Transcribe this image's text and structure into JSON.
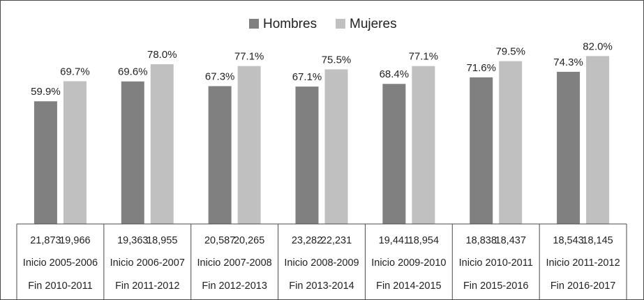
{
  "colors": {
    "hombres": "#808080",
    "mujeres": "#c0c0c0",
    "border": "#4a4a4a",
    "text": "#222222"
  },
  "chart_data": {
    "type": "bar",
    "title": "",
    "xlabel": "",
    "ylabel": "",
    "ylim": [
      0,
      100
    ],
    "grid": false,
    "legend_position": "top-center",
    "categories": [
      "Inicio 2005-2006 Fin 2010-2011",
      "Inicio 2006-2007 Fin 2011-2012",
      "Inicio 2007-2008 Fin 2012-2013",
      "Inicio 2008-2009 Fin 2013-2014",
      "Inicio 2009-2010 Fin 2014-2015",
      "Inicio 2010-2011 Fin 2015-2016",
      "Inicio 2011-2012 Fin 2016-2017"
    ],
    "series": [
      {
        "name": "Hombres",
        "values": [
          59.9,
          69.6,
          67.3,
          67.1,
          68.4,
          71.6,
          74.3
        ],
        "labels": [
          "59.9%",
          "69.6%",
          "67.3%",
          "67.1%",
          "68.4%",
          "71.6%",
          "74.3%"
        ],
        "counts": [
          "21,873",
          "19,363",
          "20,587",
          "23,282",
          "19,441",
          "18,838",
          "18,543"
        ]
      },
      {
        "name": "Mujeres",
        "values": [
          69.7,
          78.0,
          77.1,
          75.5,
          77.1,
          79.5,
          82.0
        ],
        "labels": [
          "69.7%",
          "78.0%",
          "77.1%",
          "75.5%",
          "77.1%",
          "79.5%",
          "82.0%"
        ],
        "counts": [
          "19,966",
          "18,955",
          "20,265",
          "22,231",
          "18,954",
          "18,437",
          "18,145"
        ]
      }
    ],
    "table": {
      "inicio": [
        "Inicio 2005-2006",
        "Inicio 2006-2007",
        "Inicio 2007-2008",
        "Inicio 2008-2009",
        "Inicio 2009-2010",
        "Inicio 2010-2011",
        "Inicio 2011-2012"
      ],
      "fin": [
        "Fin 2010-2011",
        "Fin 2011-2012",
        "Fin 2012-2013",
        "Fin 2013-2014",
        "Fin 2014-2015",
        "Fin 2015-2016",
        "Fin 2016-2017"
      ]
    }
  }
}
